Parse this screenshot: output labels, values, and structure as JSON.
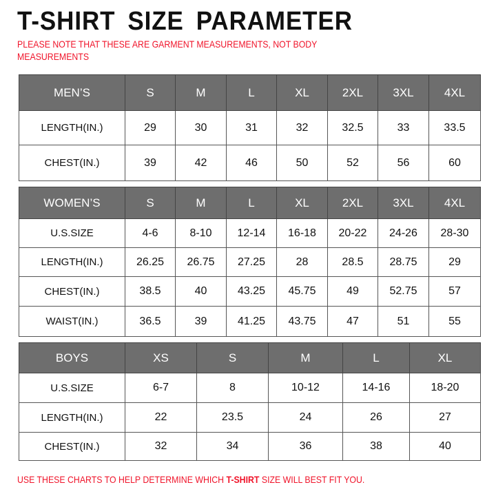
{
  "title": "T-SHIRT SIZE PARAMETER",
  "note": [
    "PLEASE NOTE THAT THESE ARE GARMENT MEASUREMENTS, NOT BODY",
    "MEASUREMENTS"
  ],
  "tables": [
    {
      "header": [
        "MEN’S",
        "S",
        "M",
        "L",
        "XL",
        "2XL",
        "3XL",
        "4XL"
      ],
      "rows": [
        [
          "LENGTH(IN.)",
          "29",
          "30",
          "31",
          "32",
          "32.5",
          "33",
          "33.5"
        ],
        [
          "CHEST(IN.)",
          "39",
          "42",
          "46",
          "50",
          "52",
          "56",
          "60"
        ]
      ]
    },
    {
      "header": [
        "WOMEN’S",
        "S",
        "M",
        "L",
        "XL",
        "2XL",
        "3XL",
        "4XL"
      ],
      "rows": [
        [
          "U.S.SIZE",
          "4-6",
          "8-10",
          "12-14",
          "16-18",
          "20-22",
          "24-26",
          "28-30"
        ],
        [
          "LENGTH(IN.)",
          "26.25",
          "26.75",
          "27.25",
          "28",
          "28.5",
          "28.75",
          "29"
        ],
        [
          "CHEST(IN.)",
          "38.5",
          "40",
          "43.25",
          "45.75",
          "49",
          "52.75",
          "57"
        ],
        [
          "WAIST(IN.)",
          "36.5",
          "39",
          "41.25",
          "43.75",
          "47",
          "51",
          "55"
        ]
      ]
    },
    {
      "header": [
        "BOYS",
        "XS",
        "S",
        "M",
        "L",
        "XL"
      ],
      "rows": [
        [
          "U.S.SIZE",
          "6-7",
          "8",
          "10-12",
          "14-16",
          "18-20"
        ],
        [
          "LENGTH(IN.)",
          "22",
          "23.5",
          "24",
          "26",
          "27"
        ],
        [
          "CHEST(IN.)",
          "32",
          "34",
          "36",
          "38",
          "40"
        ]
      ]
    }
  ],
  "footer": {
    "before": "USE THESE CHARTS TO HELP DETERMINE WHICH ",
    "bold": "T-SHIRT",
    "after": " SIZE WILL BEST FIT YOU."
  },
  "colors": {
    "header_bg": "#6e6e6e",
    "note": "#f0142a"
  }
}
